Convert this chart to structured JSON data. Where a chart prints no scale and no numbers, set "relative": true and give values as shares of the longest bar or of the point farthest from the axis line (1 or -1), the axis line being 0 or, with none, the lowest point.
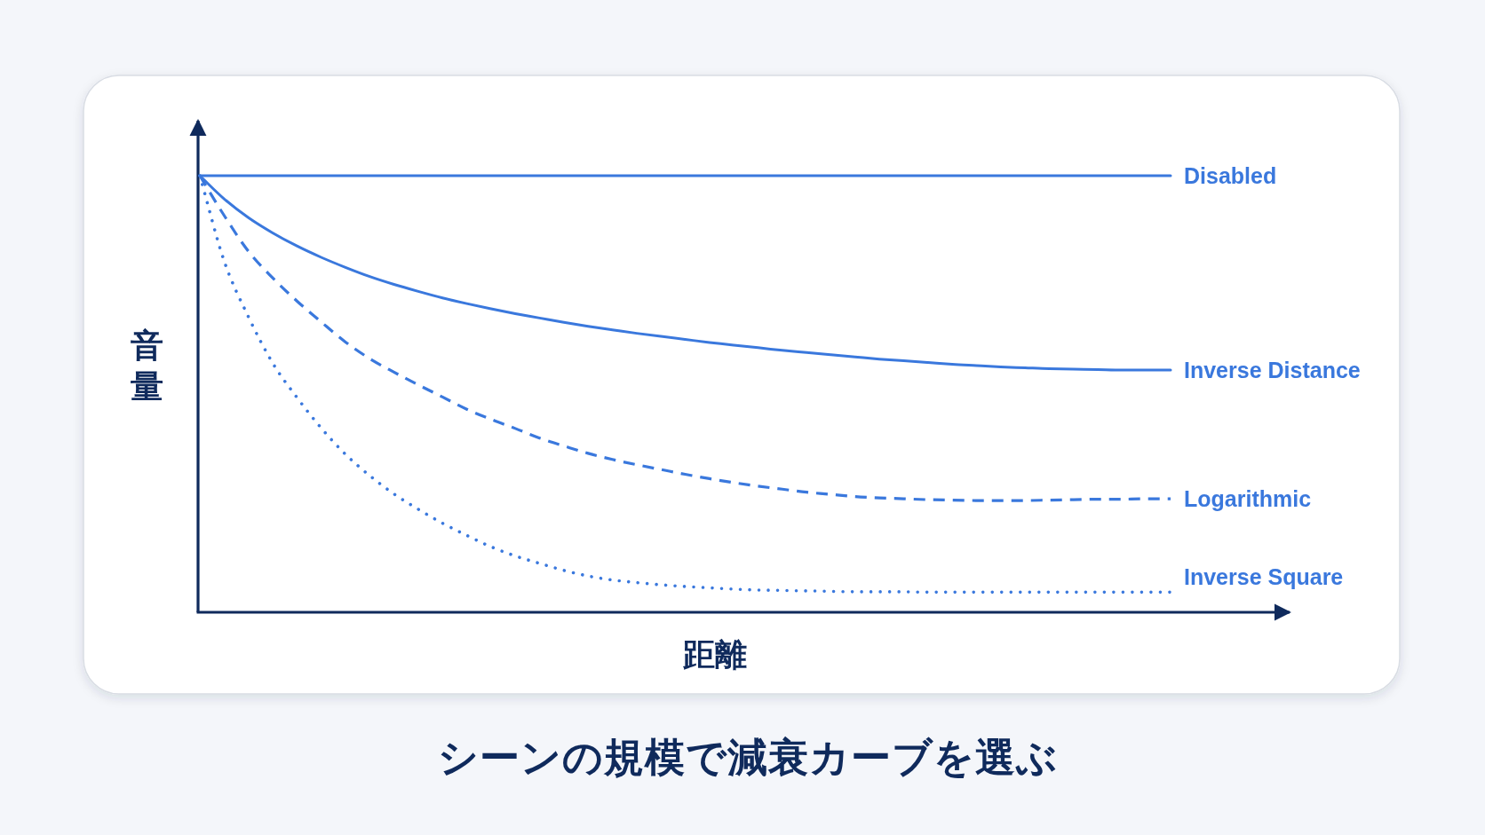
{
  "chart_data": {
    "type": "line",
    "title": "シーンの規模で減衰カーブを選ぶ",
    "xlabel": "距離",
    "ylabel": "音量",
    "relative": true,
    "categories": [
      null,
      null,
      null,
      null,
      null,
      null,
      null,
      null,
      null,
      null,
      null,
      null,
      null,
      null,
      null,
      null,
      null,
      null,
      null,
      null,
      null,
      null,
      null,
      null,
      null,
      null,
      null,
      null,
      null,
      null,
      null,
      null,
      null,
      null,
      null,
      null,
      null,
      null,
      null,
      null,
      null
    ],
    "series": [
      {
        "name": "Disabled",
        "color": "#3a78dd",
        "line_style": "solid",
        "values": [
          1.0,
          1.0,
          1.0,
          1.0,
          1.0,
          1.0,
          1.0,
          1.0,
          1.0,
          1.0,
          1.0,
          1.0,
          1.0,
          1.0,
          1.0,
          1.0,
          1.0,
          1.0,
          1.0,
          1.0,
          1.0,
          1.0,
          1.0,
          1.0,
          1.0,
          1.0,
          1.0,
          1.0,
          1.0,
          1.0,
          1.0,
          1.0,
          1.0,
          1.0,
          1.0,
          1.0,
          1.0,
          1.0,
          1.0,
          1.0,
          1.0
        ]
      },
      {
        "name": "Inverse Distance",
        "color": "#3a78dd",
        "line_style": "solid",
        "values": [
          1.0,
          0.947,
          0.904,
          0.869,
          0.839,
          0.813,
          0.79,
          0.769,
          0.751,
          0.735,
          0.72,
          0.707,
          0.695,
          0.684,
          0.674,
          0.664,
          0.655,
          0.647,
          0.639,
          0.632,
          0.625,
          0.618,
          0.612,
          0.606,
          0.6,
          0.595,
          0.59,
          0.585,
          0.58,
          0.576,
          0.572,
          0.568,
          0.565,
          0.562,
          0.56,
          0.558,
          0.557,
          0.556,
          0.555,
          0.555,
          0.555
        ]
      },
      {
        "name": "Logarithmic",
        "color": "#3a78dd",
        "line_style": "dashed",
        "values": [
          1.0,
          0.909,
          0.827,
          0.766,
          0.713,
          0.665,
          0.619,
          0.581,
          0.55,
          0.521,
          0.493,
          0.465,
          0.442,
          0.421,
          0.399,
          0.381,
          0.364,
          0.35,
          0.338,
          0.327,
          0.316,
          0.306,
          0.297,
          0.289,
          0.282,
          0.275,
          0.27,
          0.265,
          0.262,
          0.26,
          0.258,
          0.257,
          0.256,
          0.256,
          0.256,
          0.257,
          0.258,
          0.259,
          0.259,
          0.26,
          0.26
        ]
      },
      {
        "name": "Inverse Square",
        "color": "#3a78dd",
        "line_style": "dotted",
        "values": [
          1.0,
          0.805,
          0.677,
          0.571,
          0.492,
          0.422,
          0.362,
          0.313,
          0.271,
          0.236,
          0.204,
          0.176,
          0.15,
          0.129,
          0.112,
          0.096,
          0.083,
          0.074,
          0.068,
          0.063,
          0.059,
          0.056,
          0.053,
          0.051,
          0.05,
          0.049,
          0.048,
          0.047,
          0.047,
          0.047,
          0.046,
          0.046,
          0.046,
          0.046,
          0.046,
          0.046,
          0.046,
          0.046,
          0.046,
          0.046,
          0.046
        ]
      }
    ]
  }
}
